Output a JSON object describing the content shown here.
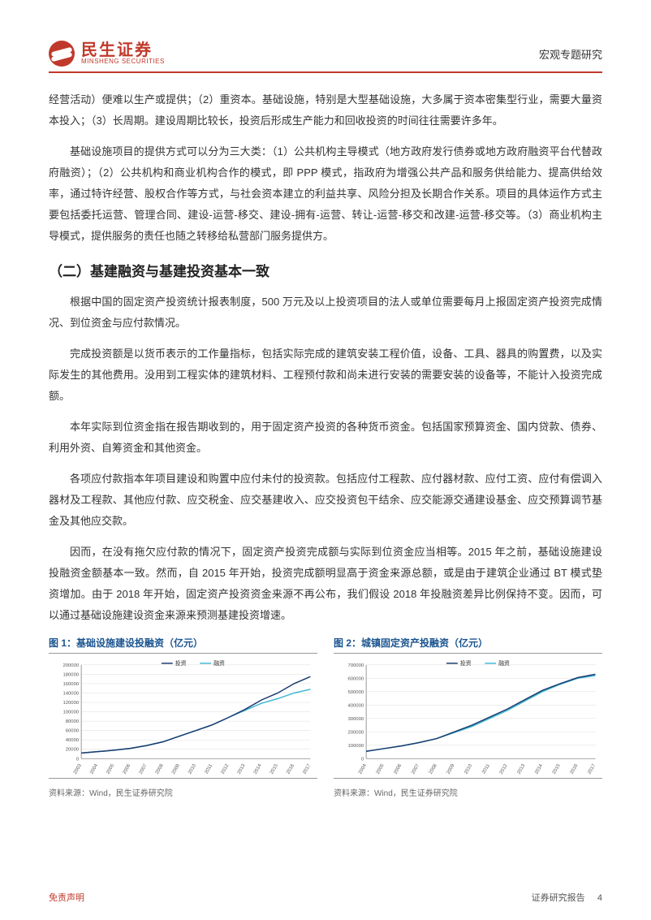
{
  "header": {
    "logo_cn": "民生证券",
    "logo_en": "MINSHENG SECURITIES",
    "right_text": "宏观专题研究"
  },
  "paragraphs": {
    "p1": "经营活动）便难以生产或提供；（2）重资本。基础设施，特别是大型基础设施，大多属于资本密集型行业，需要大量资本投入；（3）长周期。建设周期比较长，投资后形成生产能力和回收投资的时间往往需要许多年。",
    "p2": "基础设施项目的提供方式可以分为三大类：（1）公共机构主导模式（地方政府发行债券或地方政府融资平台代替政府融资）；（2）公共机构和商业机构合作的模式，即 PPP 模式，指政府为增强公共产品和服务供给能力、提高供给效率，通过特许经营、股权合作等方式，与社会资本建立的利益共享、风险分担及长期合作关系。项目的具体运作方式主要包括委托运营、管理合同、建设-运营-移交、建设-拥有-运营、转让-运营-移交和改建-运营-移交等。（3）商业机构主导模式，提供服务的责任也随之转移给私营部门服务提供方。",
    "heading": "（二）基建融资与基建投资基本一致",
    "p3": "根据中国的固定资产投资统计报表制度，500 万元及以上投资项目的法人或单位需要每月上报固定资产投资完成情况、到位资金与应付款情况。",
    "p4": "完成投资额是以货币表示的工作量指标，包括实际完成的建筑安装工程价值，设备、工具、器具的购置费，以及实际发生的其他费用。没用到工程实体的建筑材料、工程预付款和尚未进行安装的需要安装的设备等，不能计入投资完成额。",
    "p5": "本年实际到位资金指在报告期收到的，用于固定资产投资的各种货币资金。包括国家预算资金、国内贷款、债券、利用外资、自筹资金和其他资金。",
    "p6": "各项应付款指本年项目建设和购置中应付未付的投资款。包括应付工程款、应付器材款、应付工资、应付有偿调入器材及工程款、其他应付款、应交税金、应交基建收入、应交投资包干结余、应交能源交通建设基金、应交预算调节基金及其他应交款。",
    "p7": "因而，在没有拖欠应付款的情况下，固定资产投资完成额与实际到位资金应当相等。2015 年之前，基础设施建设投融资金额基本一致。然而，自 2015 年开始，投资完成额明显高于资金来源总额，或是由于建筑企业通过 BT 模式垫资增加。由于 2018 年开始，固定资产投资资金来源不再公布，我们假设 2018 年投融资差异比例保持不变。因而，可以通过基础设施建设资金来源来预测基建投资增速。"
  },
  "chart1": {
    "title": "图 1：基础设施建设投融资（亿元）",
    "source": "资料来源：Wind，民生证券研究院",
    "legend": [
      "投资",
      "融资"
    ],
    "colors": {
      "investment": "#1a3a6e",
      "financing": "#3fb8d4",
      "axis": "#999",
      "grid": "#ddd"
    },
    "ymax": 200000,
    "ytick": 20000,
    "years": [
      "2003",
      "2004",
      "2005",
      "2006",
      "2007",
      "2008",
      "2009",
      "2010",
      "2011",
      "2012",
      "2013",
      "2014",
      "2015",
      "2016",
      "2017"
    ],
    "investment": [
      12000,
      15000,
      18000,
      22000,
      28000,
      36000,
      48000,
      60000,
      72000,
      88000,
      105000,
      125000,
      140000,
      160000,
      175000
    ],
    "financing": [
      12000,
      15000,
      18000,
      22000,
      28000,
      36000,
      48000,
      60000,
      72000,
      88000,
      103000,
      118000,
      128000,
      140000,
      148000
    ]
  },
  "chart2": {
    "title": "图 2：城镇固定资产投融资（亿元）",
    "source": "资料来源：Wind，民生证券研究院",
    "legend": [
      "投资",
      "融资"
    ],
    "colors": {
      "investment": "#1a3a6e",
      "financing": "#3fb8d4",
      "axis": "#999",
      "grid": "#ddd"
    },
    "ymax": 700000,
    "ytick": 100000,
    "years": [
      "2004",
      "2005",
      "2006",
      "2007",
      "2008",
      "2009",
      "2010",
      "2011",
      "2012",
      "2013",
      "2014",
      "2015",
      "2016",
      "2017"
    ],
    "investment": [
      55000,
      75000,
      95000,
      120000,
      150000,
      200000,
      250000,
      310000,
      370000,
      440000,
      510000,
      560000,
      605000,
      630000
    ],
    "financing": [
      55000,
      75000,
      95000,
      120000,
      150000,
      195000,
      240000,
      300000,
      360000,
      430000,
      500000,
      555000,
      600000,
      620000
    ]
  },
  "footer": {
    "left": "免责声明",
    "right_label": "证券研究报告",
    "page": "4"
  }
}
